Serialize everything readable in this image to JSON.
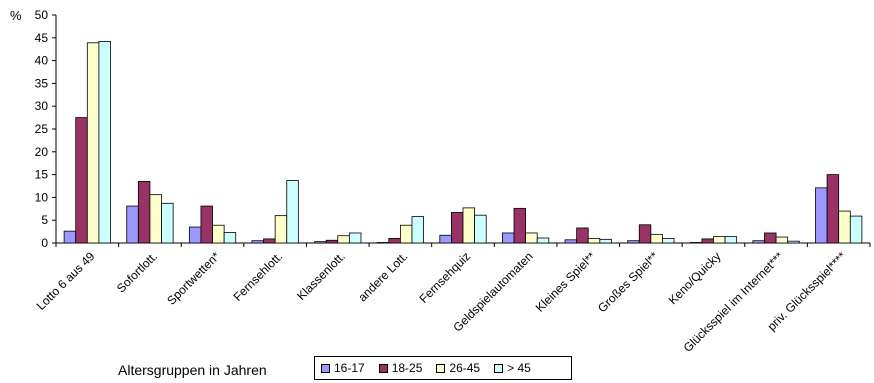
{
  "chart_data": {
    "type": "bar",
    "y_unit": "%",
    "ylim": [
      0,
      50
    ],
    "yticks": [
      0,
      5,
      10,
      15,
      20,
      25,
      30,
      35,
      40,
      45,
      50
    ],
    "grid": false,
    "legend_position": "bottom",
    "legend_title": "Altersgruppen in Jahren",
    "categories": [
      "Lotto 6 aus 49",
      "Sofortlott.",
      "Sportwetten*",
      "Fernsehlott.",
      "Klassenlott.",
      "andere Lott.",
      "Fernsehquiz",
      "Geldspielautomaten",
      "Kleines Spiel**",
      "Großes Spiel**",
      "Keno/Quicky",
      "Glücksspiel im Internet***",
      "priv. Glücksspiel****"
    ],
    "series": [
      {
        "name": "16-17",
        "color": "#9999ff",
        "values": [
          2.6,
          8.1,
          3.5,
          0.5,
          0.3,
          0.1,
          1.7,
          2.2,
          0.7,
          0.5,
          0.1,
          0.5,
          12.1
        ]
      },
      {
        "name": "18-25",
        "color": "#993366",
        "values": [
          27.5,
          13.5,
          8.1,
          0.9,
          0.6,
          1.0,
          6.7,
          7.6,
          3.3,
          4.0,
          0.9,
          2.2,
          15.0
        ]
      },
      {
        "name": "26-45",
        "color": "#ffffcc",
        "values": [
          43.9,
          10.6,
          3.9,
          6.0,
          1.6,
          3.9,
          7.7,
          2.2,
          1.0,
          1.9,
          1.4,
          1.3,
          7.0
        ]
      },
      {
        "name": "> 45",
        "color": "#ccffff",
        "values": [
          44.2,
          8.7,
          2.3,
          13.7,
          2.2,
          5.8,
          6.1,
          1.1,
          0.8,
          1.0,
          1.4,
          0.4,
          5.9
        ]
      }
    ]
  }
}
